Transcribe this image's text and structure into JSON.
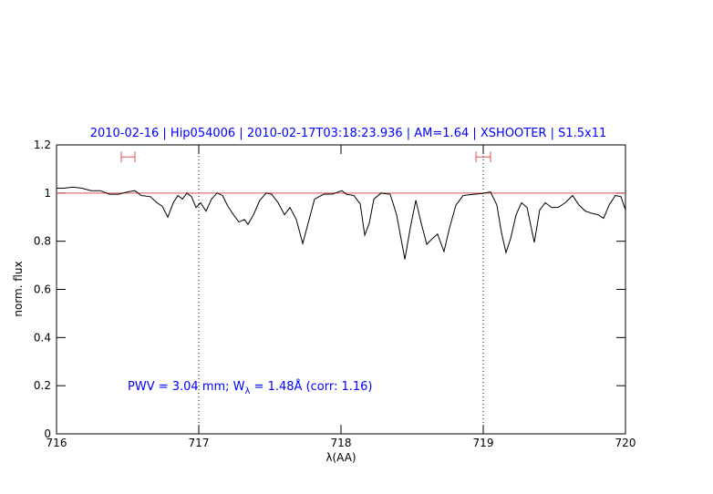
{
  "chart_data": {
    "type": "line",
    "title": "2010-02-16 | Hip054006 | 2010-02-17T03:18:23.936 | AM=1.64 | XSHOOTER | S1.5x11",
    "xlabel": "λ(AA)",
    "ylabel": "norm. flux",
    "annotation": [
      "PWV = 3.04 mm; W",
      "λ",
      " = 1.48Å (corr: 1.16)"
    ],
    "xlim": [
      716,
      720
    ],
    "ylim": [
      0,
      1.2
    ],
    "xticks": [
      716,
      717,
      718,
      719,
      720
    ],
    "yticks": [
      0,
      0.2,
      0.4,
      0.6,
      0.8,
      1,
      1.2
    ],
    "x": [
      716.0,
      716.051,
      716.115,
      716.179,
      716.244,
      716.308,
      716.372,
      716.436,
      716.5,
      716.551,
      716.596,
      716.66,
      716.705,
      716.744,
      716.782,
      716.821,
      716.853,
      716.885,
      716.917,
      716.949,
      716.981,
      717.013,
      717.051,
      717.09,
      717.128,
      717.167,
      717.205,
      717.244,
      717.282,
      717.321,
      717.346,
      717.385,
      717.429,
      717.474,
      717.513,
      717.558,
      717.603,
      717.641,
      717.686,
      717.731,
      717.769,
      717.814,
      717.878,
      717.942,
      718.006,
      718.038,
      718.09,
      718.135,
      718.167,
      718.199,
      718.231,
      718.282,
      718.346,
      718.391,
      718.449,
      718.487,
      718.526,
      718.564,
      718.603,
      718.641,
      718.679,
      718.724,
      718.763,
      718.808,
      718.859,
      718.936,
      719.0,
      719.051,
      719.096,
      719.128,
      719.16,
      719.192,
      719.231,
      719.269,
      719.308,
      719.359,
      719.397,
      719.436,
      719.481,
      719.526,
      719.577,
      719.628,
      719.673,
      719.718,
      719.769,
      719.808,
      719.846,
      719.885,
      719.929,
      719.968,
      720.0
    ],
    "series": [
      {
        "color": "#000000",
        "values": [
          1.02,
          1.02,
          1.025,
          1.02,
          1.01,
          1.01,
          0.995,
          0.995,
          1.005,
          1.01,
          0.99,
          0.985,
          0.96,
          0.945,
          0.9,
          0.96,
          0.99,
          0.975,
          1.0,
          0.985,
          0.94,
          0.96,
          0.925,
          0.975,
          1.0,
          0.99,
          0.945,
          0.91,
          0.88,
          0.89,
          0.87,
          0.91,
          0.97,
          1.0,
          0.995,
          0.96,
          0.91,
          0.94,
          0.89,
          0.79,
          0.875,
          0.975,
          0.995,
          0.996,
          1.01,
          0.995,
          0.99,
          0.955,
          0.825,
          0.875,
          0.975,
          1.0,
          0.995,
          0.91,
          0.725,
          0.855,
          0.97,
          0.875,
          0.787,
          0.81,
          0.83,
          0.757,
          0.855,
          0.95,
          0.99,
          0.995,
          0.999,
          1.005,
          0.95,
          0.836,
          0.753,
          0.81,
          0.91,
          0.96,
          0.94,
          0.795,
          0.93,
          0.96,
          0.94,
          0.94,
          0.96,
          0.99,
          0.95,
          0.925,
          0.915,
          0.91,
          0.895,
          0.95,
          0.99,
          0.985,
          0.93
        ]
      }
    ],
    "reference_line": {
      "value": 1,
      "color": "#e05050"
    },
    "vlines": [
      717,
      719
    ],
    "intervals": [
      {
        "from": 716.455,
        "to": 716.551,
        "y": 1.15
      },
      {
        "from": 718.949,
        "to": 719.051,
        "y": 1.15
      }
    ],
    "interval_color": "#e05050",
    "title_color": "#0000ff"
  }
}
